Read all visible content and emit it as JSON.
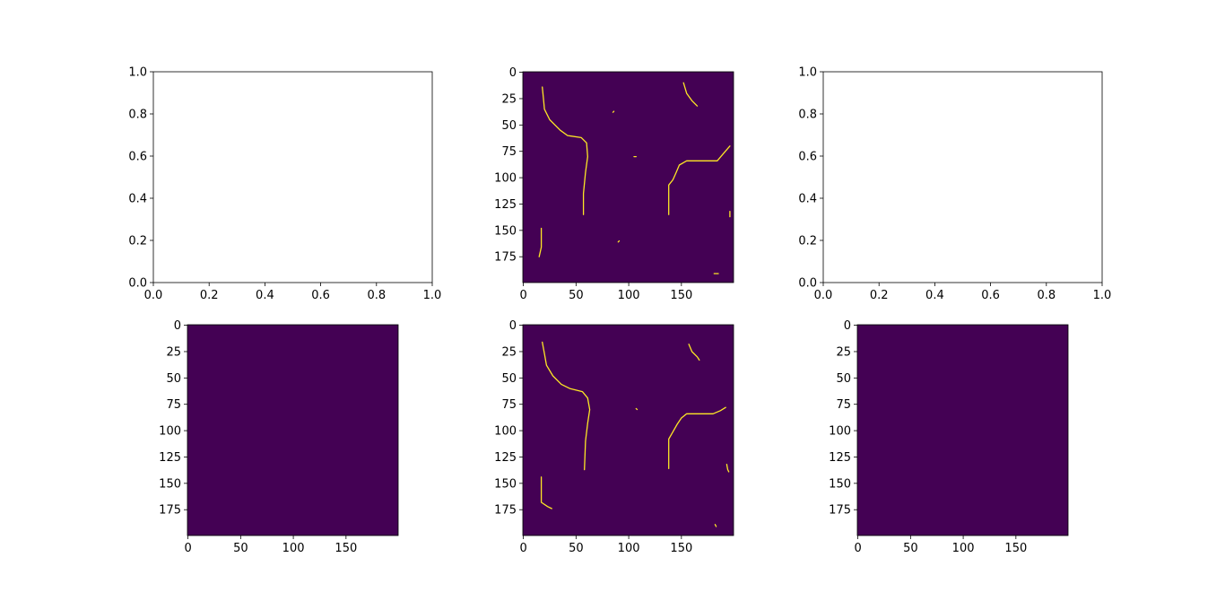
{
  "figure": {
    "background": "#ffffff"
  },
  "chart_data": [
    {
      "panel": "top-left",
      "type": "empty",
      "xlim": [
        0,
        1
      ],
      "ylim": [
        0,
        1
      ],
      "xticks": [
        "0.0",
        "0.2",
        "0.4",
        "0.6",
        "0.8",
        "1.0"
      ],
      "yticks": [
        "0.0",
        "0.2",
        "0.4",
        "0.6",
        "0.8",
        "1.0"
      ]
    },
    {
      "panel": "top-center",
      "type": "heatmap",
      "shape": [
        200,
        200
      ],
      "background_color": "#440154",
      "edge_color": "#fde725",
      "xticks": [
        "0",
        "50",
        "100",
        "150"
      ],
      "yticks": [
        "0",
        "25",
        "50",
        "75",
        "100",
        "125",
        "150",
        "175"
      ],
      "edges": [
        [
          [
            18,
            14
          ],
          [
            19,
            24
          ],
          [
            20,
            35
          ],
          [
            25,
            45
          ],
          [
            35,
            55
          ],
          [
            42,
            60
          ],
          [
            55,
            62
          ],
          [
            60,
            67
          ],
          [
            61,
            80
          ],
          [
            59,
            95
          ],
          [
            57,
            115
          ],
          [
            57,
            135
          ]
        ],
        [
          [
            152,
            10
          ],
          [
            155,
            20
          ],
          [
            160,
            27
          ],
          [
            165,
            32
          ]
        ],
        [
          [
            138,
            135
          ],
          [
            138,
            107
          ],
          [
            142,
            102
          ],
          [
            145,
            95
          ],
          [
            148,
            88
          ],
          [
            155,
            84
          ],
          [
            184,
            84
          ],
          [
            190,
            77
          ],
          [
            196,
            70
          ]
        ],
        [
          [
            17,
            148
          ],
          [
            17,
            166
          ],
          [
            15,
            175
          ]
        ],
        [
          [
            85,
            38
          ],
          [
            86,
            37
          ]
        ],
        [
          [
            105,
            80
          ],
          [
            107,
            80
          ]
        ],
        [
          [
            90,
            161
          ],
          [
            91,
            160
          ]
        ],
        [
          [
            196,
            132
          ],
          [
            196,
            137
          ]
        ],
        [
          [
            181,
            191
          ],
          [
            185,
            191
          ]
        ]
      ]
    },
    {
      "panel": "top-right",
      "type": "empty",
      "xlim": [
        0,
        1
      ],
      "ylim": [
        0,
        1
      ],
      "xticks": [
        "0.0",
        "0.2",
        "0.4",
        "0.6",
        "0.8",
        "1.0"
      ],
      "yticks": [
        "0.0",
        "0.2",
        "0.4",
        "0.6",
        "0.8",
        "1.0"
      ]
    },
    {
      "panel": "bottom-left",
      "type": "heatmap",
      "shape": [
        200,
        200
      ],
      "background_color": "#440154",
      "edge_color": "#fde725",
      "xticks": [
        "0",
        "50",
        "100",
        "150"
      ],
      "yticks": [
        "0",
        "25",
        "50",
        "75",
        "100",
        "125",
        "150",
        "175"
      ],
      "edges": []
    },
    {
      "panel": "bottom-center",
      "type": "heatmap",
      "shape": [
        200,
        200
      ],
      "background_color": "#440154",
      "edge_color": "#fde725",
      "xticks": [
        "0",
        "50",
        "100",
        "150"
      ],
      "yticks": [
        "0",
        "25",
        "50",
        "75",
        "100",
        "125",
        "150",
        "175"
      ],
      "edges": [
        [
          [
            18,
            16
          ],
          [
            20,
            27
          ],
          [
            22,
            38
          ],
          [
            28,
            48
          ],
          [
            36,
            56
          ],
          [
            44,
            60
          ],
          [
            56,
            63
          ],
          [
            61,
            69
          ],
          [
            63,
            80
          ],
          [
            61,
            93
          ],
          [
            59,
            110
          ],
          [
            58,
            137
          ]
        ],
        [
          [
            157,
            18
          ],
          [
            160,
            25
          ],
          [
            165,
            30
          ],
          [
            167,
            33
          ]
        ],
        [
          [
            138,
            136
          ],
          [
            138,
            108
          ],
          [
            142,
            101
          ],
          [
            146,
            94
          ],
          [
            150,
            88
          ],
          [
            155,
            84
          ],
          [
            180,
            84
          ],
          [
            187,
            81
          ],
          [
            192,
            78
          ]
        ],
        [
          [
            17,
            144
          ],
          [
            17,
            168
          ],
          [
            23,
            172
          ],
          [
            27,
            174
          ]
        ],
        [
          [
            107,
            79
          ],
          [
            108,
            80
          ]
        ],
        [
          [
            193,
            132
          ],
          [
            194,
            137
          ],
          [
            195,
            139
          ]
        ],
        [
          [
            182,
            189
          ],
          [
            183,
            191
          ]
        ]
      ]
    },
    {
      "panel": "bottom-right",
      "type": "heatmap",
      "shape": [
        200,
        200
      ],
      "background_color": "#440154",
      "edge_color": "#fde725",
      "xticks": [
        "0",
        "50",
        "100",
        "150"
      ],
      "yticks": [
        "0",
        "25",
        "50",
        "75",
        "100",
        "125",
        "150",
        "175"
      ],
      "edges": []
    }
  ]
}
